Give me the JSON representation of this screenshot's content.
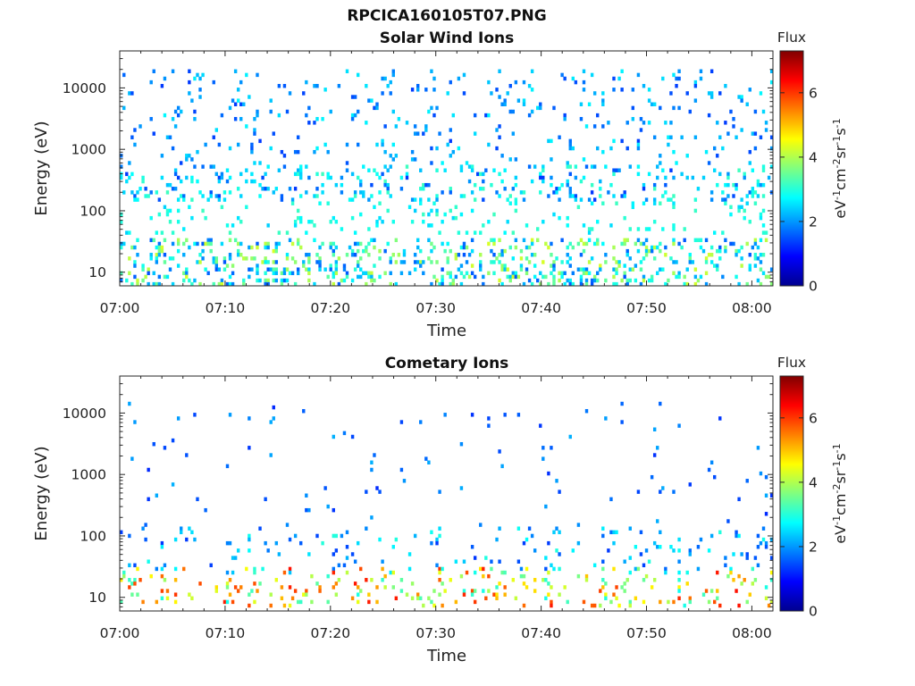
{
  "figure": {
    "title": "RPCICA160105T07.PNG"
  },
  "colorbar": {
    "label": "Flux",
    "unit": {
      "a": "eV",
      "b": "-1",
      "c": "cm",
      "d": "-2",
      "e": "sr",
      "f": "-1",
      "g": "s",
      "h": "-1"
    },
    "ticks": [
      "0",
      "2",
      "4",
      "6"
    ],
    "range": [
      0,
      7.3
    ],
    "colormap": "jet"
  },
  "chart_data": [
    {
      "type": "heatmap",
      "title": "Solar Wind Ions",
      "xlabel": "Time",
      "ylabel": "Energy (eV)",
      "yscale": "log",
      "ylim": [
        6,
        40000
      ],
      "xlim": [
        "07:00",
        "08:02"
      ],
      "xticks": [
        "07:00",
        "07:10",
        "07:20",
        "07:30",
        "07:40",
        "07:50",
        "08:00"
      ],
      "yticks": [
        "10",
        "100",
        "1000",
        "10000"
      ],
      "color_scale": [
        0,
        7.3
      ],
      "seed": 11,
      "components": [
        {
          "band_low": 150,
          "band_high": 20000,
          "density": 0.06,
          "vmin": 1.3,
          "vmax": 2.7
        },
        {
          "band_low": 40,
          "band_high": 600,
          "density": 0.07,
          "vmin": 2.4,
          "vmax": 3.2
        },
        {
          "band_low": 6,
          "band_high": 35,
          "density": 0.2,
          "vmin": 1.5,
          "vmax": 4.3
        }
      ]
    },
    {
      "type": "heatmap",
      "title": "Cometary Ions",
      "xlabel": "Time",
      "ylabel": "Energy (eV)",
      "yscale": "log",
      "ylim": [
        6,
        40000
      ],
      "xlim": [
        "07:00",
        "08:02"
      ],
      "xticks": [
        "07:00",
        "07:10",
        "07:20",
        "07:30",
        "07:40",
        "07:50",
        "08:00"
      ],
      "yticks": [
        "10",
        "100",
        "1000",
        "10000"
      ],
      "color_scale": [
        0,
        7.3
      ],
      "seed": 29,
      "components": [
        {
          "band_low": 100,
          "band_high": 15000,
          "density": 0.012,
          "vmin": 1.2,
          "vmax": 2.2
        },
        {
          "band_low": 25,
          "band_high": 150,
          "density": 0.05,
          "vmin": 1.3,
          "vmax": 3.0
        },
        {
          "band_low": 7,
          "band_high": 30,
          "density": 0.1,
          "vmin": 2.8,
          "vmax": 6.3
        }
      ]
    }
  ]
}
